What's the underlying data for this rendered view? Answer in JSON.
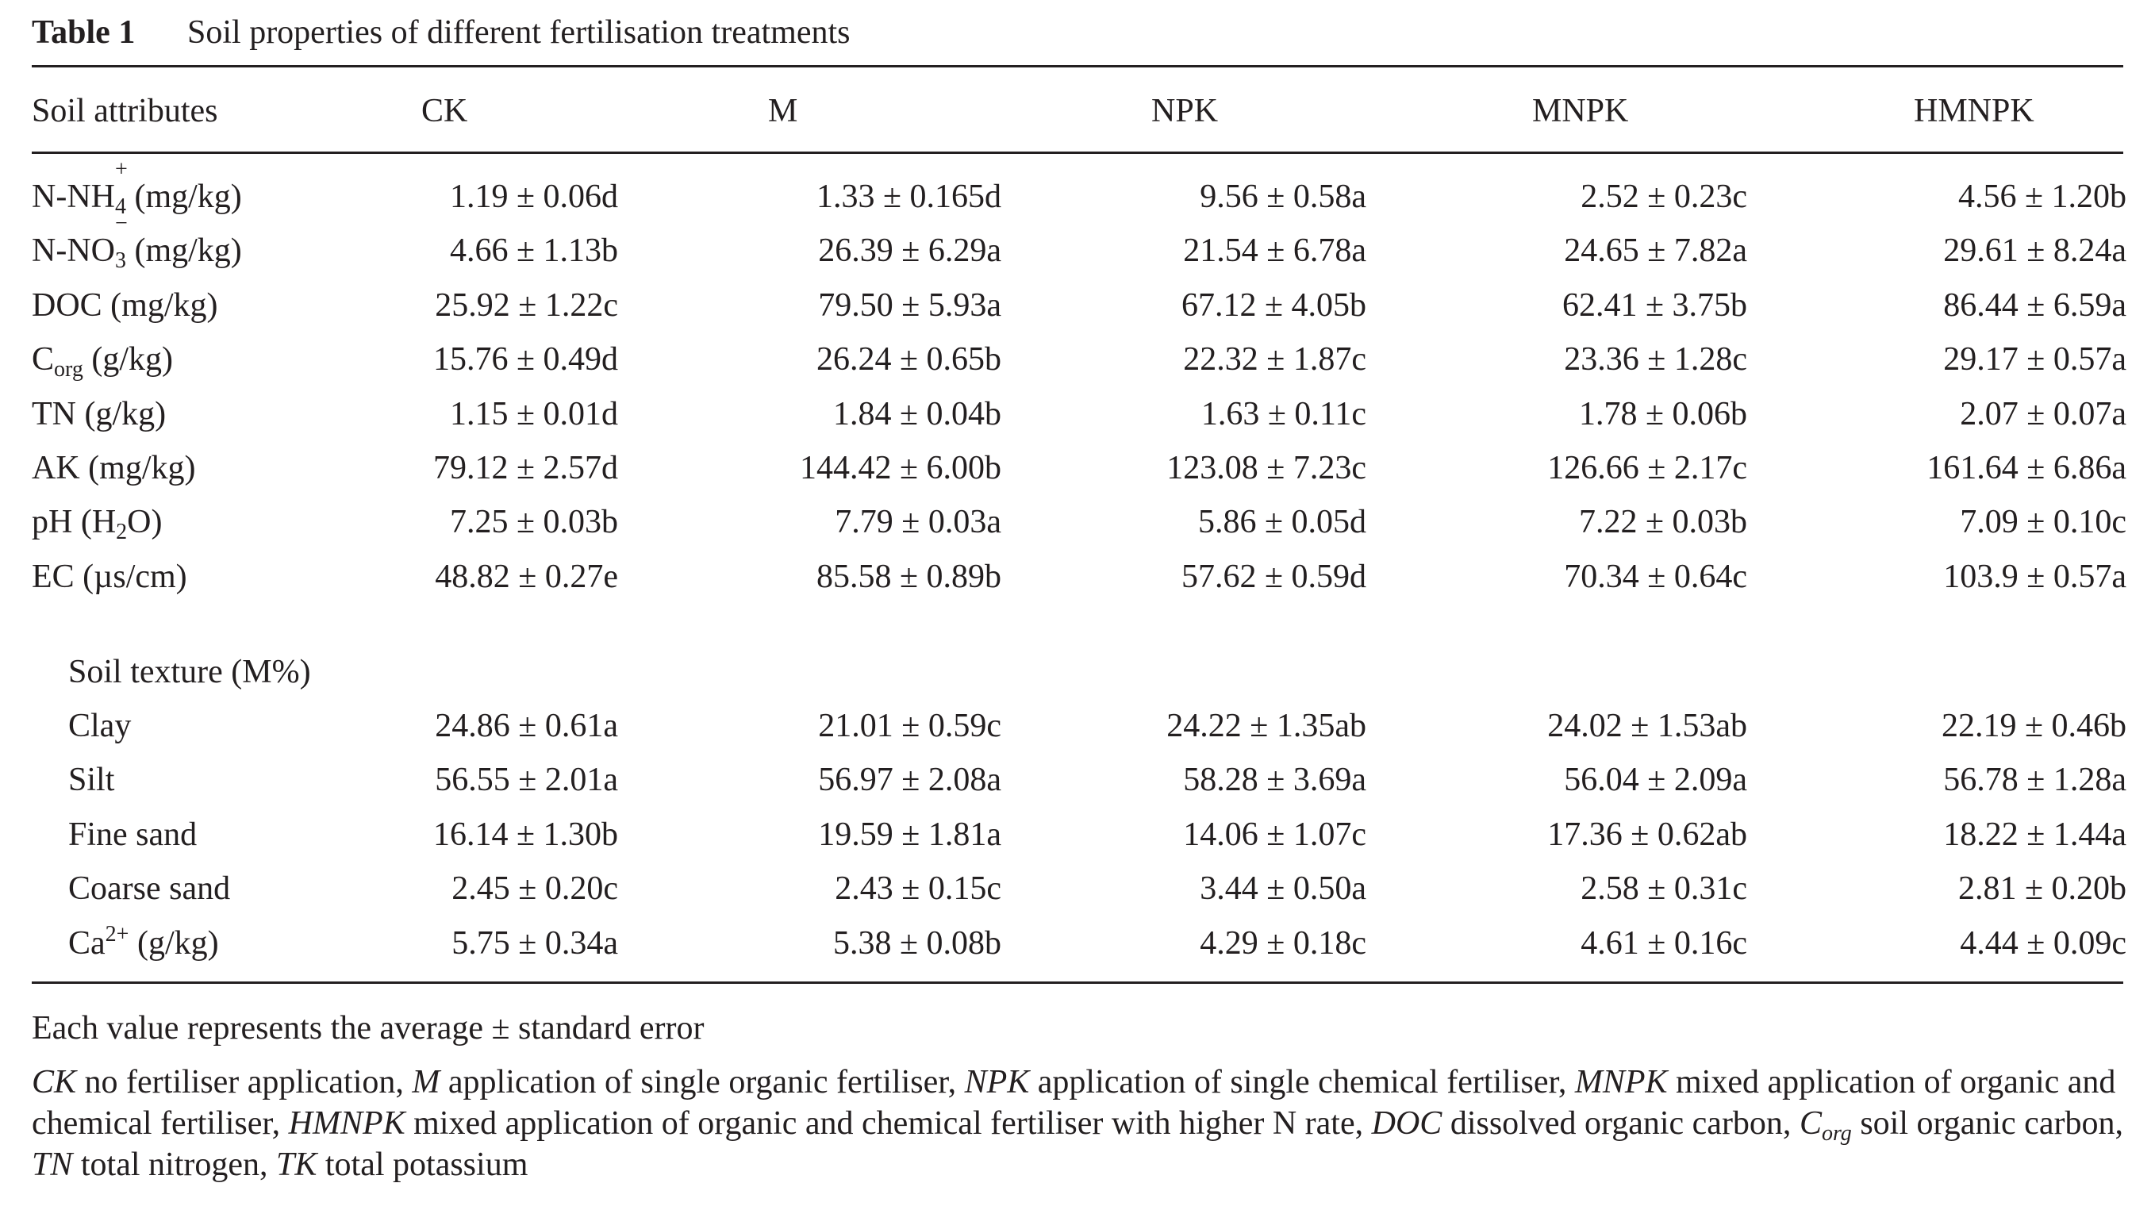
{
  "caption": {
    "label": "Table 1",
    "title": "Soil properties of different fertilisation treatments"
  },
  "columns": [
    "Soil attributes",
    "CK",
    "M",
    "NPK",
    "MNPK",
    "HMNPK"
  ],
  "rows": [
    {
      "attr_main": "N-NH",
      "attr_sub": "4",
      "attr_sup": "+",
      "attr_tail": " (mg/kg)",
      "values": [
        "1.19 ± 0.06d",
        "1.33 ± 0.165d",
        "9.56 ± 0.58a",
        "2.52 ± 0.23c",
        "4.56 ± 1.20b"
      ]
    },
    {
      "attr_main": "N-NO",
      "attr_sub": "3",
      "attr_sup": "−",
      "attr_tail": " (mg/kg)",
      "values": [
        "4.66 ± 1.13b",
        "26.39 ± 6.29a",
        "21.54 ± 6.78a",
        "24.65 ± 7.82a",
        "29.61 ± 8.24a"
      ]
    },
    {
      "attr_main": "DOC (mg/kg)",
      "values": [
        "25.92 ± 1.22c",
        "79.50 ± 5.93a",
        "67.12 ± 4.05b",
        "62.41 ± 3.75b",
        "86.44 ± 6.59a"
      ]
    },
    {
      "attr_main": "C",
      "attr_sub": "org",
      "attr_tail": " (g/kg)",
      "values": [
        "15.76 ± 0.49d",
        "26.24 ± 0.65b",
        "22.32 ± 1.87c",
        "23.36 ± 1.28c",
        "29.17 ± 0.57a"
      ]
    },
    {
      "attr_main": "TN (g/kg)",
      "values": [
        "1.15 ± 0.01d",
        "1.84 ± 0.04b",
        "1.63 ± 0.11c",
        "1.78 ± 0.06b",
        "2.07 ± 0.07a"
      ]
    },
    {
      "attr_main": "AK (mg/kg)",
      "values": [
        "79.12 ± 2.57d",
        "144.42 ± 6.00b",
        "123.08 ± 7.23c",
        "126.66 ± 2.17c",
        "161.64 ± 6.86a"
      ]
    },
    {
      "attr_main": "pH (H",
      "attr_sub": "2",
      "attr_tail": "O)",
      "values": [
        "7.25 ± 0.03b",
        "7.79 ± 0.03a",
        "5.86 ± 0.05d",
        "7.22 ± 0.03b",
        "7.09 ± 0.10c"
      ]
    },
    {
      "attr_main": "EC (µs/cm)",
      "values": [
        "48.82 ± 0.27e",
        "85.58 ± 0.89b",
        "57.62 ± 0.59d",
        "70.34 ± 0.64c",
        "103.9 ± 0.57a"
      ]
    }
  ],
  "texture_heading": "Soil texture (M%)",
  "texture_rows": [
    {
      "attr_main": "Clay",
      "values": [
        "24.86 ± 0.61a",
        "21.01 ± 0.59c",
        "24.22 ± 1.35ab",
        "24.02 ± 1.53ab",
        "22.19 ± 0.46b"
      ]
    },
    {
      "attr_main": "Silt",
      "values": [
        "56.55 ± 2.01a",
        "56.97 ± 2.08a",
        "58.28 ± 3.69a",
        "56.04 ± 2.09a",
        "56.78 ± 1.28a"
      ]
    },
    {
      "attr_main": "Fine sand",
      "values": [
        "16.14 ± 1.30b",
        "19.59 ± 1.81a",
        "14.06 ± 1.07c",
        "17.36 ± 0.62ab",
        "18.22 ± 1.44a"
      ]
    },
    {
      "attr_main": "Coarse sand",
      "values": [
        "2.45 ± 0.20c",
        "2.43 ± 0.15c",
        "3.44 ± 0.50a",
        "2.58 ± 0.31c",
        "2.81 ± 0.20b"
      ]
    },
    {
      "attr_main": "Ca",
      "attr_sup": "2+",
      "attr_tail": " (g/kg)",
      "values": [
        "5.75 ± 0.34a",
        "5.38 ± 0.08b",
        "4.29 ± 0.18c",
        "4.61 ± 0.16c",
        "4.44 ± 0.09c"
      ]
    }
  ],
  "footnotes": {
    "note1": "Each value represents the average ± standard error",
    "abbr": {
      "ck": "CK",
      "ck_text": " no fertiliser application, ",
      "m": "M",
      "m_text": " application of single organic fertiliser, ",
      "npk": "NPK",
      "npk_text": " application of single chemical fertiliser, ",
      "mnpk": "MNPK",
      "mnpk_text": " mixed application of organic and chemical fertiliser, ",
      "hmnpk": "HMNPK",
      "hmnpk_text": " mixed application of organic and chemical fertiliser with higher N rate, ",
      "doc": "DOC",
      "doc_text": " dissolved organic carbon, ",
      "corg_c": "C",
      "corg_sub": "org",
      "corg_text": " soil organic carbon, ",
      "tn": "TN",
      "tn_text": " total nitrogen, ",
      "tk": "TK",
      "tk_text": " total potassium"
    }
  }
}
